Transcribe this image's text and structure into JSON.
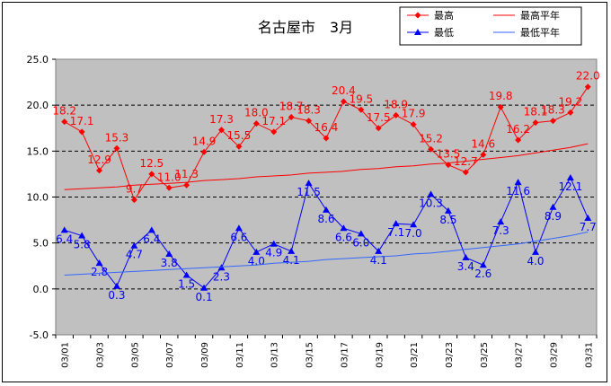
{
  "chart_data": {
    "type": "line",
    "title": "名古屋市　3月",
    "xlabel": "",
    "ylabel": "",
    "ylim": [
      -5,
      25
    ],
    "yticks": [
      -5,
      0,
      5,
      10,
      15,
      20,
      25
    ],
    "ytick_labels": [
      "-5.0",
      "0.0",
      "5.0",
      "10.0",
      "15.0",
      "20.0",
      "25.0"
    ],
    "x": [
      "03/01",
      "03/02",
      "03/03",
      "03/04",
      "03/05",
      "03/06",
      "03/07",
      "03/08",
      "03/09",
      "03/10",
      "03/11",
      "03/12",
      "03/13",
      "03/14",
      "03/15",
      "03/16",
      "03/17",
      "03/18",
      "03/19",
      "03/20",
      "03/21",
      "03/22",
      "03/23",
      "03/24",
      "03/25",
      "03/26",
      "03/27",
      "03/28",
      "03/29",
      "03/30",
      "03/31"
    ],
    "xtick_labels": [
      "03/01",
      "03/03",
      "03/05",
      "03/07",
      "03/09",
      "03/11",
      "03/13",
      "03/15",
      "03/17",
      "03/19",
      "03/21",
      "03/23",
      "03/25",
      "03/27",
      "03/29",
      "03/31"
    ],
    "grid": "horizontal dashed",
    "plot_background": "#c0c0c0",
    "legend_position": "top-right",
    "series": [
      {
        "name": "最高",
        "color": "#ff0000",
        "marker": "diamond",
        "values": [
          18.2,
          17.1,
          12.9,
          15.3,
          9.7,
          12.5,
          11.0,
          11.3,
          14.9,
          17.3,
          15.5,
          18.0,
          17.1,
          18.7,
          18.3,
          16.4,
          20.4,
          19.5,
          17.5,
          18.9,
          17.9,
          15.2,
          13.5,
          12.7,
          14.6,
          19.8,
          16.2,
          18.1,
          18.3,
          19.2,
          22.0
        ],
        "labels": [
          "18.2",
          "17.1",
          "12.9",
          "15.3",
          "9.7",
          "12.5",
          "11.0",
          "11.3",
          "14.9",
          "17.3",
          "15.5",
          "18.0",
          "17.1",
          "18.7",
          "18.3",
          "16.4",
          "20.4",
          "19.5",
          "17.5",
          "18.9",
          "17.9",
          "15.2",
          "13.5",
          "12.7",
          "14.6",
          "19.8",
          "16.2",
          "18.1",
          "18.3",
          "19.2",
          "22.0"
        ]
      },
      {
        "name": "最高平年",
        "color": "#ff0000",
        "marker": "none",
        "values": [
          10.8,
          10.9,
          11.0,
          11.1,
          11.3,
          11.4,
          11.5,
          11.6,
          11.8,
          11.9,
          12.0,
          12.2,
          12.3,
          12.4,
          12.6,
          12.7,
          12.8,
          13.0,
          13.1,
          13.3,
          13.4,
          13.6,
          13.7,
          13.9,
          14.1,
          14.3,
          14.5,
          14.8,
          15.1,
          15.4,
          15.8
        ]
      },
      {
        "name": "最低",
        "color": "#0000ff",
        "marker": "triangle",
        "values": [
          6.4,
          5.8,
          2.8,
          0.3,
          4.7,
          6.4,
          3.8,
          1.5,
          0.1,
          2.3,
          6.6,
          4.0,
          4.9,
          4.1,
          11.5,
          8.6,
          6.6,
          6.0,
          4.1,
          7.1,
          7.0,
          10.3,
          8.5,
          3.4,
          2.6,
          7.3,
          11.6,
          4.0,
          8.9,
          12.1,
          7.7
        ],
        "labels": [
          "6.4",
          "5.8",
          "2.8",
          "0.3",
          "4.7",
          "6.4",
          "3.8",
          "1.5",
          "0.1",
          "2.3",
          "6.6",
          "4.0",
          "4.9",
          "4.1",
          "11.5",
          "8.6",
          "6.6",
          "6.0",
          "4.1",
          "7.1",
          "7.0",
          "10.3",
          "8.5",
          "3.4",
          "2.6",
          "7.3",
          "11.6",
          "4.0",
          "8.9",
          "12.1",
          "7.7"
        ]
      },
      {
        "name": "最低平年",
        "color": "#3366ff",
        "marker": "none",
        "values": [
          1.5,
          1.6,
          1.7,
          1.8,
          1.9,
          2.0,
          2.1,
          2.2,
          2.3,
          2.4,
          2.5,
          2.6,
          2.8,
          2.9,
          3.0,
          3.2,
          3.3,
          3.4,
          3.5,
          3.6,
          3.8,
          3.9,
          4.1,
          4.3,
          4.5,
          4.7,
          4.9,
          5.2,
          5.5,
          5.8,
          6.2
        ]
      }
    ]
  }
}
